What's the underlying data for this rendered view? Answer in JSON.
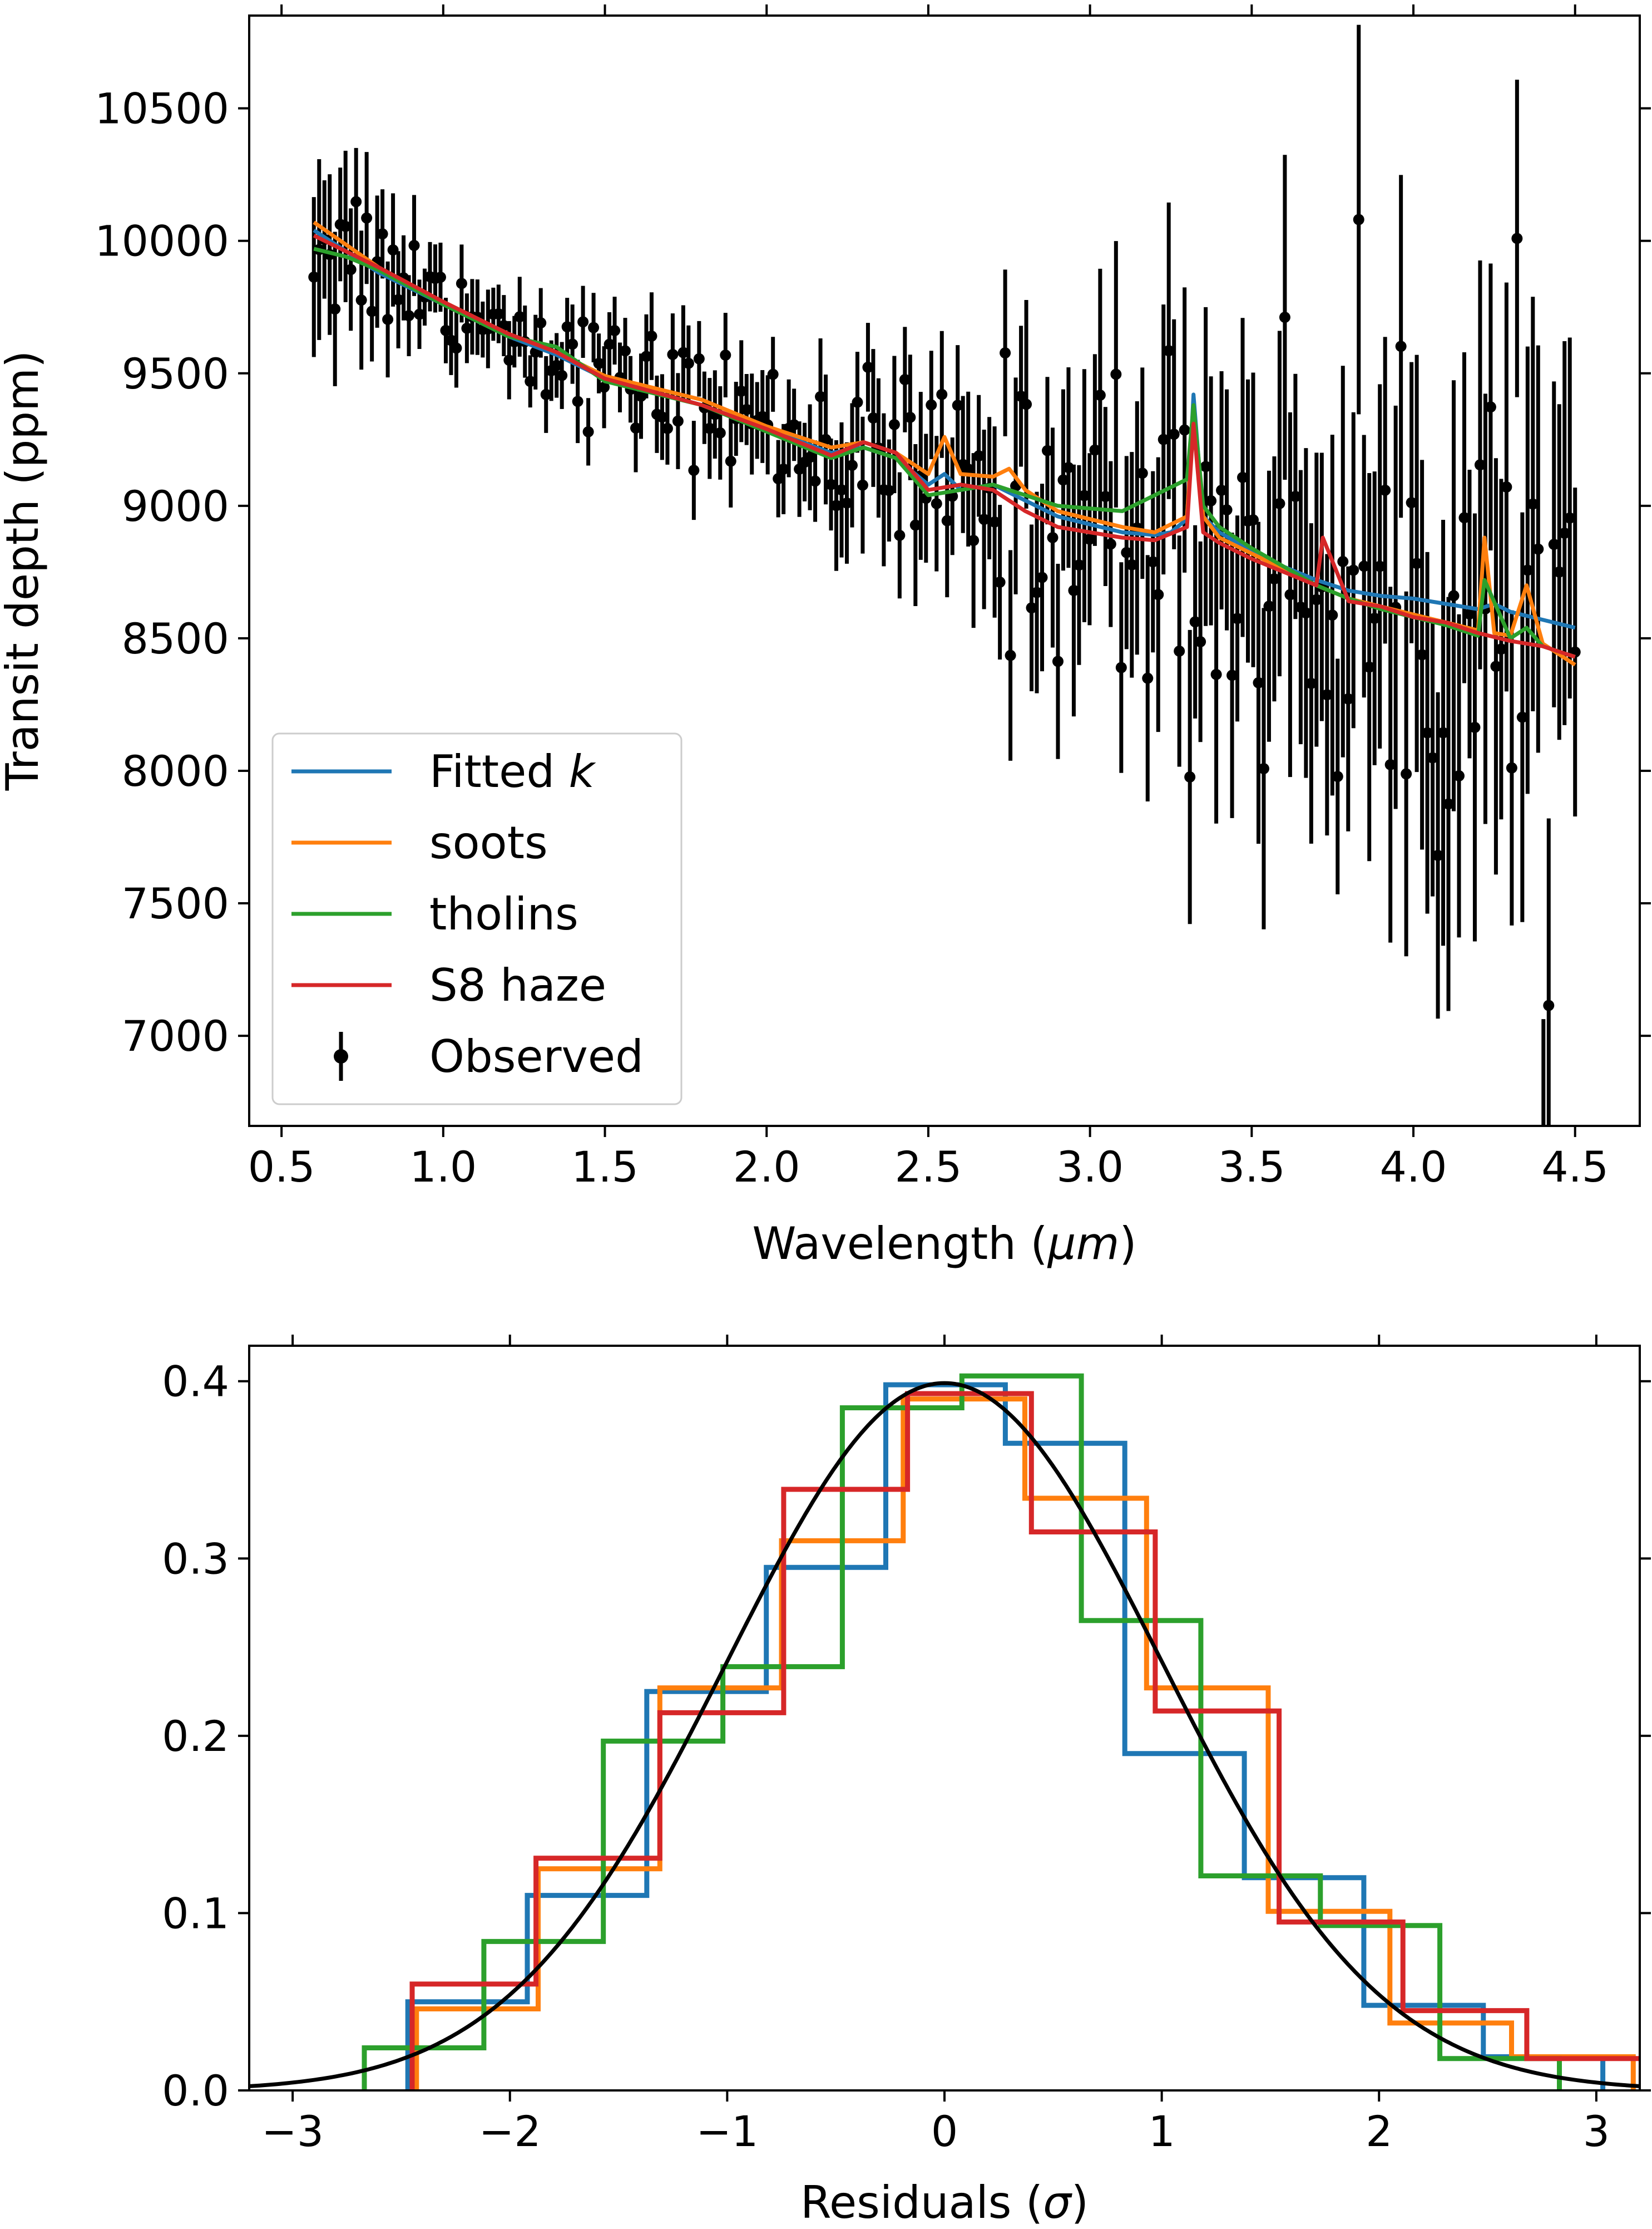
{
  "chart_data": [
    {
      "type": "line",
      "title": "",
      "xlabel": "Wavelength (μm)",
      "ylabel": "Transit depth (ppm)",
      "xlim": [
        0.4,
        4.7
      ],
      "ylim": [
        6660,
        10850
      ],
      "xticks": [
        0.5,
        1.0,
        1.5,
        2.0,
        2.5,
        3.0,
        3.5,
        4.0,
        4.5
      ],
      "xtick_labels": [
        "0.5",
        "1.0",
        "1.5",
        "2.0",
        "2.5",
        "3.0",
        "3.5",
        "4.0",
        "4.5"
      ],
      "yticks": [
        7000,
        7500,
        8000,
        8500,
        9000,
        9500,
        10000,
        10500
      ],
      "ytick_labels": [
        "7000",
        "7500",
        "8000",
        "8500",
        "9000",
        "9500",
        "10000",
        "10500"
      ],
      "legend": {
        "position": "lower-left",
        "entries": [
          {
            "label_main": "Fitted ",
            "label_italic": "k",
            "color": "#1f77b4",
            "marker": "line"
          },
          {
            "label_main": "soots",
            "label_italic": "",
            "color": "#ff7f0e",
            "marker": "line"
          },
          {
            "label_main": "tholins",
            "label_italic": "",
            "color": "#2ca02c",
            "marker": "line"
          },
          {
            "label_main": "S8 haze",
            "label_italic": "",
            "color": "#d62728",
            "marker": "line"
          },
          {
            "label_main": "Observed",
            "label_italic": "",
            "color": "#000000",
            "marker": "errorbar"
          }
        ]
      },
      "series": [
        {
          "name": "Fitted k",
          "color": "#1f77b4",
          "x": [
            0.6,
            0.8,
            1.0,
            1.2,
            1.35,
            1.5,
            1.8,
            2.0,
            2.2,
            2.3,
            2.4,
            2.5,
            2.55,
            2.6,
            2.7,
            2.8,
            2.9,
            3.0,
            3.1,
            3.2,
            3.25,
            3.3,
            3.32,
            3.35,
            3.4,
            3.5,
            3.6,
            3.7,
            3.8,
            3.9,
            4.0,
            4.1,
            4.2,
            4.25,
            4.3,
            4.4,
            4.5
          ],
          "y": [
            10040,
            9880,
            9760,
            9640,
            9570,
            9480,
            9380,
            9290,
            9200,
            9220,
            9180,
            9080,
            9120,
            9060,
            9080,
            9020,
            8960,
            8930,
            8900,
            8890,
            8900,
            8950,
            9420,
            8960,
            8900,
            8830,
            8770,
            8720,
            8680,
            8660,
            8650,
            8630,
            8610,
            8630,
            8600,
            8570,
            8540
          ]
        },
        {
          "name": "soots",
          "color": "#ff7f0e",
          "x": [
            0.6,
            0.8,
            1.0,
            1.2,
            1.35,
            1.5,
            1.8,
            2.0,
            2.2,
            2.3,
            2.4,
            2.5,
            2.55,
            2.6,
            2.7,
            2.75,
            2.8,
            2.9,
            3.0,
            3.1,
            3.2,
            3.3,
            3.32,
            3.35,
            3.4,
            3.5,
            3.6,
            3.7,
            3.8,
            3.9,
            4.0,
            4.1,
            4.2,
            4.22,
            4.25,
            4.3,
            4.35,
            4.4,
            4.5
          ],
          "y": [
            10070,
            9900,
            9770,
            9650,
            9580,
            9490,
            9400,
            9300,
            9220,
            9240,
            9200,
            9120,
            9260,
            9120,
            9110,
            9140,
            9060,
            8980,
            8950,
            8920,
            8900,
            8960,
            9340,
            8960,
            8880,
            8820,
            8760,
            8700,
            8650,
            8620,
            8590,
            8560,
            8530,
            8880,
            8520,
            8510,
            8700,
            8480,
            8400
          ]
        },
        {
          "name": "tholins",
          "color": "#2ca02c",
          "x": [
            0.6,
            0.7,
            0.8,
            1.0,
            1.2,
            1.35,
            1.5,
            1.8,
            2.0,
            2.2,
            2.3,
            2.4,
            2.5,
            2.6,
            2.7,
            2.8,
            2.9,
            3.0,
            3.1,
            3.2,
            3.3,
            3.32,
            3.35,
            3.4,
            3.5,
            3.6,
            3.7,
            3.8,
            3.9,
            4.0,
            4.1,
            4.2,
            4.22,
            4.3,
            4.35,
            4.4,
            4.5
          ],
          "y": [
            9970,
            9940,
            9890,
            9760,
            9640,
            9600,
            9470,
            9380,
            9280,
            9180,
            9220,
            9180,
            9040,
            9060,
            9080,
            9040,
            9000,
            8990,
            8980,
            9040,
            9100,
            9380,
            9000,
            8920,
            8840,
            8770,
            8700,
            8650,
            8610,
            8580,
            8550,
            8510,
            8720,
            8500,
            8540,
            8470,
            8430
          ]
        },
        {
          "name": "S8 haze",
          "color": "#d62728",
          "x": [
            0.6,
            0.7,
            0.8,
            1.0,
            1.2,
            1.35,
            1.5,
            1.8,
            2.0,
            2.2,
            2.3,
            2.4,
            2.5,
            2.6,
            2.7,
            2.8,
            2.9,
            3.0,
            3.1,
            3.2,
            3.3,
            3.32,
            3.35,
            3.4,
            3.5,
            3.6,
            3.7,
            3.72,
            3.8,
            3.9,
            4.0,
            4.1,
            4.2,
            4.3,
            4.4,
            4.5
          ],
          "y": [
            10020,
            9960,
            9900,
            9770,
            9650,
            9580,
            9480,
            9380,
            9290,
            9190,
            9240,
            9200,
            9060,
            9080,
            9060,
            8980,
            8920,
            8900,
            8880,
            8870,
            8920,
            9310,
            8900,
            8860,
            8800,
            8750,
            8700,
            8880,
            8640,
            8620,
            8580,
            8560,
            8520,
            8490,
            8470,
            8430
          ]
        }
      ],
      "observed": {
        "name": "Observed",
        "color": "#000000",
        "x_start": 0.6,
        "x_end": 4.5,
        "count": 240,
        "trend_x": [
          0.6,
          1.0,
          1.5,
          2.0,
          2.5,
          3.0,
          3.5,
          4.0,
          4.5
        ],
        "trend_y": [
          10050,
          9780,
          9500,
          9300,
          9080,
          8950,
          8800,
          8620,
          8480
        ],
        "error_x": [
          0.6,
          1.0,
          2.0,
          2.5,
          3.0,
          3.5,
          4.0,
          4.5
        ],
        "error_ppm": [
          280,
          120,
          160,
          260,
          400,
          520,
          650,
          720
        ],
        "scatter_x": [
          0.6,
          1.0,
          2.0,
          2.5,
          3.0,
          3.5,
          4.0,
          4.5
        ],
        "scatter_ppm": [
          180,
          90,
          120,
          200,
          320,
          420,
          520,
          580
        ]
      }
    },
    {
      "type": "histogram",
      "title": "",
      "xlabel": "Residuals (σ)",
      "ylabel": "",
      "xlim": [
        -3.2,
        3.2
      ],
      "ylim": [
        0,
        0.42
      ],
      "xticks": [
        -3,
        -2,
        -1,
        0,
        1,
        2,
        3
      ],
      "xtick_labels": [
        "−3",
        "−2",
        "−1",
        "0",
        "1",
        "2",
        "3"
      ],
      "yticks": [
        0.0,
        0.1,
        0.2,
        0.3,
        0.4
      ],
      "ytick_labels": [
        "0.0",
        "0.1",
        "0.2",
        "0.3",
        "0.4"
      ],
      "series": [
        {
          "name": "Fitted k",
          "color": "#1f77b4",
          "edges": [
            -2.47,
            -1.92,
            -1.37,
            -0.82,
            -0.27,
            0.28,
            0.83,
            1.38,
            1.93,
            2.48,
            3.03
          ],
          "values": [
            0.05,
            0.11,
            0.225,
            0.295,
            0.398,
            0.365,
            0.19,
            0.12,
            0.048,
            0.019
          ]
        },
        {
          "name": "soots",
          "color": "#ff7f0e",
          "edges": [
            -2.43,
            -1.87,
            -1.31,
            -0.75,
            -0.19,
            0.37,
            0.93,
            1.49,
            2.05,
            2.61,
            3.17
          ],
          "values": [
            0.046,
            0.125,
            0.227,
            0.31,
            0.39,
            0.334,
            0.227,
            0.101,
            0.038,
            0.019
          ]
        },
        {
          "name": "tholins",
          "color": "#2ca02c",
          "edges": [
            -2.67,
            -2.12,
            -1.57,
            -1.02,
            -0.47,
            0.08,
            0.63,
            1.18,
            1.73,
            2.28,
            2.83
          ],
          "values": [
            0.024,
            0.084,
            0.197,
            0.239,
            0.385,
            0.403,
            0.265,
            0.121,
            0.093,
            0.018
          ]
        },
        {
          "name": "S8 haze",
          "color": "#d62728",
          "edges": [
            -2.45,
            -1.88,
            -1.31,
            -0.74,
            -0.17,
            0.4,
            0.97,
            1.54,
            2.11,
            2.68,
            3.25
          ],
          "values": [
            0.06,
            0.131,
            0.213,
            0.339,
            0.393,
            0.315,
            0.214,
            0.095,
            0.045,
            0.018
          ]
        }
      ],
      "reference_curve": {
        "name": "Standard normal",
        "type": "gaussian",
        "mean": 0,
        "sigma": 1,
        "color": "#000000"
      }
    }
  ]
}
